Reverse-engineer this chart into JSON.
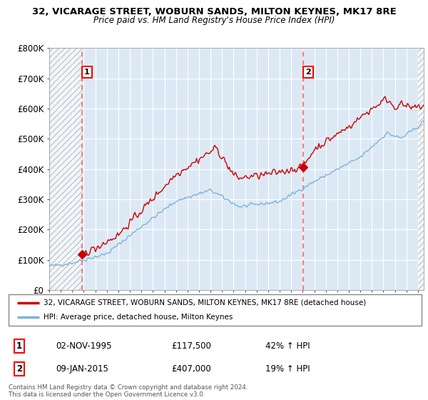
{
  "title1": "32, VICARAGE STREET, WOBURN SANDS, MILTON KEYNES, MK17 8RE",
  "title2": "Price paid vs. HM Land Registry's House Price Index (HPI)",
  "legend_line1": "32, VICARAGE STREET, WOBURN SANDS, MILTON KEYNES, MK17 8RE (detached house)",
  "legend_line2": "HPI: Average price, detached house, Milton Keynes",
  "transaction1": {
    "num": "1",
    "date": "02-NOV-1995",
    "price": "£117,500",
    "change": "42% ↑ HPI"
  },
  "transaction2": {
    "num": "2",
    "date": "09-JAN-2015",
    "price": "£407,000",
    "change": "19% ↑ HPI"
  },
  "footer": "Contains HM Land Registry data © Crown copyright and database right 2024.\nThis data is licensed under the Open Government Licence v3.0.",
  "ylim": [
    0,
    800000
  ],
  "yticks": [
    0,
    100000,
    200000,
    300000,
    400000,
    500000,
    600000,
    700000,
    800000
  ],
  "ytick_labels": [
    "£0",
    "£100K",
    "£200K",
    "£300K",
    "£400K",
    "£500K",
    "£600K",
    "£700K",
    "£800K"
  ],
  "background_color": "#ffffff",
  "chart_bg": "#dce9f5",
  "grid_color": "#ffffff",
  "red_color": "#cc0000",
  "blue_color": "#7fb3d9",
  "vline_color": "#ff6666",
  "sale1_x": 1995.84,
  "sale1_y": 117500,
  "sale2_x": 2015.03,
  "sale2_y": 407000,
  "marker_color": "#cc0000",
  "xmin": 1993.0,
  "xmax": 2025.5
}
